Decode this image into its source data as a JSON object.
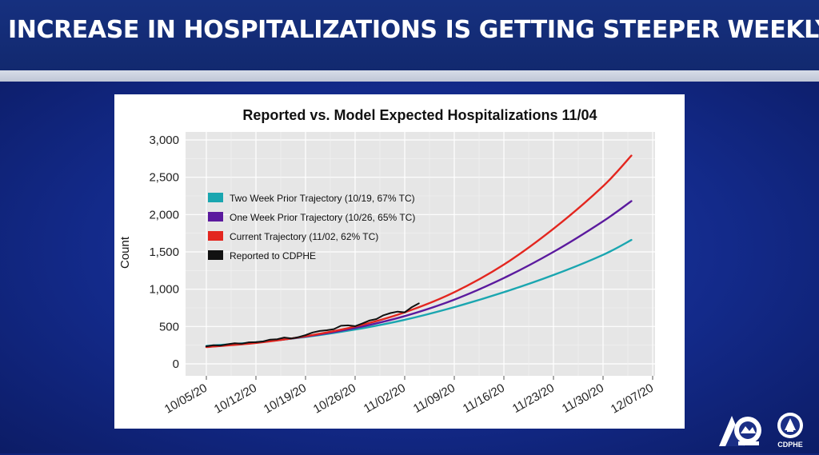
{
  "slide": {
    "title": "INCREASE IN HOSPITALIZATIONS IS GETTING STEEPER WEEKLY"
  },
  "logos": {
    "state_logo": "colorado-state-logo",
    "agency_logo_text": "CDPHE"
  },
  "colors": {
    "header_bg": "#14307d",
    "slide_bg": "#132a8a",
    "stripe": "#c8cedc",
    "panel_bg": "#e6e6e6",
    "two_week": "#1aa6b0",
    "one_week": "#5b1a9e",
    "current": "#e3261f",
    "reported": "#111111"
  },
  "chart_data": {
    "type": "line",
    "title": "Reported vs. Model Expected Hospitalizations 11/04",
    "xlabel": "",
    "ylabel": "Count",
    "ylim": [
      0,
      3000
    ],
    "yticks": [
      0,
      500,
      1000,
      1500,
      2000,
      2500,
      3000
    ],
    "ytick_labels": [
      "0",
      "500",
      "1,000",
      "1,500",
      "2,000",
      "2,500",
      "3,000"
    ],
    "xlim_days": [
      0,
      63
    ],
    "xticks_days": [
      0,
      7,
      14,
      21,
      28,
      35,
      42,
      49,
      56,
      63
    ],
    "xtick_labels": [
      "10/05/20",
      "10/12/20",
      "10/19/20",
      "10/26/20",
      "11/02/20",
      "11/09/20",
      "11/16/20",
      "11/23/20",
      "11/30/20",
      "12/07/20"
    ],
    "grid": true,
    "legend_position": "upper-left",
    "series": [
      {
        "name": "Two Week Prior Trajectory (10/19, 67% TC)",
        "color_key": "two_week",
        "x": [
          0,
          7,
          14,
          21,
          28,
          35,
          42,
          49,
          56,
          60
        ],
        "values": [
          240,
          290,
          360,
          460,
          590,
          760,
          960,
          1190,
          1460,
          1660
        ]
      },
      {
        "name": "One Week Prior Trajectory (10/26, 65% TC)",
        "color_key": "one_week",
        "x": [
          0,
          7,
          14,
          21,
          28,
          35,
          42,
          49,
          56,
          60
        ],
        "values": [
          230,
          285,
          365,
          480,
          640,
          860,
          1150,
          1500,
          1910,
          2180
        ]
      },
      {
        "name": "Current Trajectory (11/02, 62% TC)",
        "color_key": "current",
        "x": [
          0,
          7,
          14,
          21,
          28,
          35,
          42,
          49,
          56,
          60
        ],
        "values": [
          225,
          280,
          370,
          500,
          690,
          960,
          1330,
          1810,
          2380,
          2790
        ]
      },
      {
        "name": "Reported to CDPHE",
        "color_key": "reported",
        "x": [
          0,
          1,
          2,
          3,
          4,
          5,
          6,
          7,
          8,
          9,
          10,
          11,
          12,
          13,
          14,
          15,
          16,
          17,
          18,
          19,
          20,
          21,
          22,
          23,
          24,
          25,
          26,
          27,
          28,
          29,
          30
        ],
        "values": [
          235,
          250,
          245,
          262,
          275,
          270,
          288,
          290,
          300,
          325,
          330,
          352,
          340,
          358,
          385,
          420,
          440,
          450,
          465,
          510,
          515,
          505,
          540,
          580,
          600,
          650,
          680,
          700,
          690,
          760,
          810
        ]
      }
    ]
  }
}
